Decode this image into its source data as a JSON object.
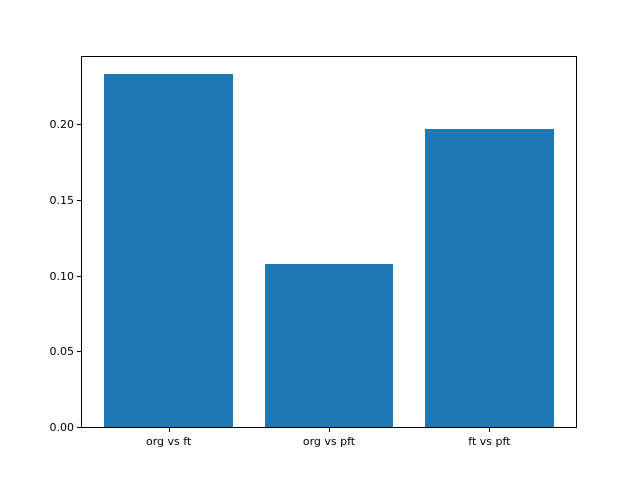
{
  "figure": {
    "background_color": "#ffffff",
    "bar_color": "#1f77b4",
    "spine_color": "#000000",
    "tick_color": "#000000",
    "text_color": "#000000"
  },
  "chart_data": {
    "type": "bar",
    "title": "",
    "xlabel": "",
    "ylabel": "",
    "categories": [
      "org vs ft",
      "org vs pft",
      "ft vs pft"
    ],
    "values": [
      0.233,
      0.108,
      0.197
    ],
    "yticks": [
      0,
      0.05,
      0.1,
      0.15,
      0.2
    ],
    "ytick_labels": [
      "0.00",
      "0.05",
      "0.10",
      "0.15",
      "0.20"
    ],
    "ylim": [
      0,
      0.2445
    ],
    "xlim": [
      -0.54,
      2.54
    ],
    "bar_width_fraction": 0.8,
    "grid": false,
    "legend": null
  }
}
